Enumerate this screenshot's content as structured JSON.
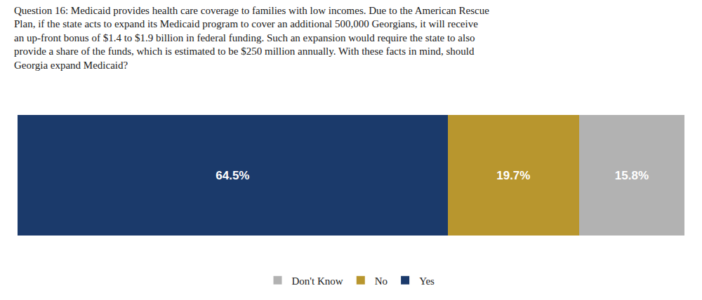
{
  "chart_data": {
    "type": "bar",
    "title": "Question 16: Medicaid provides health care coverage to families with low incomes. Due to the American Rescue\nPlan, if the state acts to expand its Medicaid program to cover an additional 500,000 Georgians, it will receive\nan up-front bonus of $1.4 to $1.9 billion in federal funding. Such an expansion would require the state to also\nprovide a share of the funds, which is estimated to be $250 million annually. With these facts in mind, should\nGeorgia expand Medicaid?",
    "orientation": "horizontal",
    "stacked": true,
    "categories": [
      null
    ],
    "series": [
      {
        "name": "Yes",
        "color": "#1b3a6b",
        "values": [
          64.5
        ],
        "value_labels": [
          "64.5%"
        ]
      },
      {
        "name": "No",
        "color": "#b8962e",
        "values": [
          19.7
        ],
        "value_labels": [
          "19.7%"
        ]
      },
      {
        "name": "Don't Know",
        "color": "#b2b2b2",
        "values": [
          15.8
        ],
        "value_labels": [
          "15.8%"
        ]
      }
    ],
    "xlim": [
      0,
      100
    ],
    "data_labels": true,
    "tick_labels": false,
    "grid": false,
    "legend": "bottom"
  }
}
